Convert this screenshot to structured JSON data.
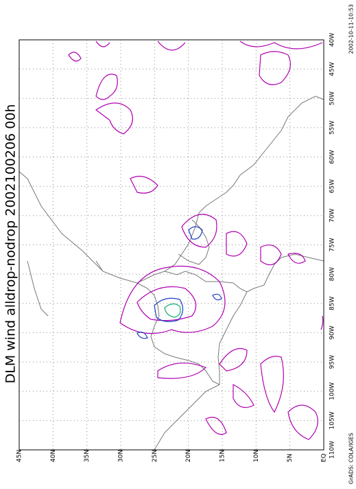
{
  "title": "DLM wind alldrop-nodrop 2002100206 00h",
  "lon_labels": [
    "40W",
    "45W",
    "50W",
    "55W",
    "60W",
    "65W",
    "70W",
    "75W",
    "80W",
    "85W",
    "90W",
    "95W",
    "100W",
    "105W",
    "110W"
  ],
  "lat_labels": [
    "45N",
    "40N",
    "35N",
    "30N",
    "25N",
    "20N",
    "15N",
    "10N",
    "5N",
    "EQ"
  ],
  "credit": "GrADS: COLA/IGES",
  "timestamp": "2002-10-11-10:53"
}
